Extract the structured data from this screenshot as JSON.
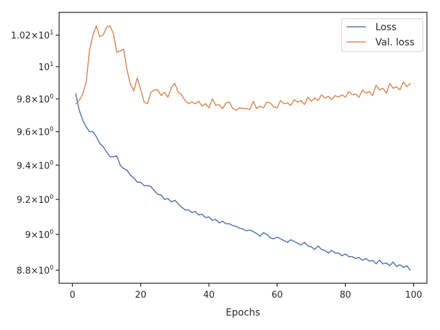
{
  "chart_data": {
    "type": "line",
    "title": "",
    "xlabel": "Epochs",
    "ylabel": "",
    "xlim": [
      -3.9,
      103.9
    ],
    "ylim": [
      8.728,
      10.347
    ],
    "xticks": [
      0,
      20,
      40,
      60,
      80,
      100
    ],
    "xtick_labels": [
      "0",
      "20",
      "40",
      "60",
      "80",
      "100"
    ],
    "yticks": [
      8.8,
      9.0,
      9.2,
      9.4,
      9.6,
      9.8,
      10.0,
      10.2
    ],
    "ytick_labels": [
      {
        "base": "8.8×10",
        "exp": "0"
      },
      {
        "base": "9×10",
        "exp": "0"
      },
      {
        "base": "9.2×10",
        "exp": "0"
      },
      {
        "base": "9.4×10",
        "exp": "0"
      },
      {
        "base": "9.6×10",
        "exp": "0"
      },
      {
        "base": "9.8×10",
        "exp": "0"
      },
      {
        "base": "10",
        "exp": "1"
      },
      {
        "base": "1.02×10",
        "exp": "1"
      }
    ],
    "y_scale": "log",
    "grid": false,
    "legend_position": "top-right",
    "series": [
      {
        "name": "Loss",
        "color": "#4c72b0",
        "x": [
          1,
          2,
          3,
          4,
          5,
          6,
          7,
          8,
          9,
          10,
          11,
          12,
          13,
          14,
          15,
          16,
          17,
          18,
          19,
          20,
          21,
          22,
          23,
          24,
          25,
          26,
          27,
          28,
          29,
          30,
          31,
          32,
          33,
          34,
          35,
          36,
          37,
          38,
          39,
          40,
          41,
          42,
          43,
          44,
          45,
          46,
          47,
          48,
          49,
          50,
          51,
          52,
          53,
          54,
          55,
          56,
          57,
          58,
          59,
          60,
          61,
          62,
          63,
          64,
          65,
          66,
          67,
          68,
          69,
          70,
          71,
          72,
          73,
          74,
          75,
          76,
          77,
          78,
          79,
          80,
          81,
          82,
          83,
          84,
          85,
          86,
          87,
          88,
          89,
          90,
          91,
          92,
          93,
          94,
          95,
          96,
          97,
          98,
          99
        ],
        "values": [
          9.83,
          9.73,
          9.67,
          9.63,
          9.6,
          9.6,
          9.57,
          9.53,
          9.51,
          9.48,
          9.45,
          9.45,
          9.455,
          9.4,
          9.38,
          9.37,
          9.34,
          9.325,
          9.3,
          9.3,
          9.28,
          9.28,
          9.275,
          9.25,
          9.23,
          9.225,
          9.2,
          9.205,
          9.185,
          9.195,
          9.175,
          9.155,
          9.14,
          9.14,
          9.125,
          9.13,
          9.11,
          9.115,
          9.095,
          9.1,
          9.08,
          9.085,
          9.065,
          9.075,
          9.06,
          9.06,
          9.05,
          9.045,
          9.035,
          9.03,
          9.02,
          9.025,
          9.015,
          9.005,
          8.99,
          9.01,
          9.0,
          8.98,
          8.975,
          8.985,
          8.975,
          8.965,
          8.955,
          8.97,
          8.96,
          8.95,
          8.94,
          8.955,
          8.935,
          8.93,
          8.915,
          8.935,
          8.915,
          8.91,
          8.895,
          8.91,
          8.895,
          8.895,
          8.88,
          8.89,
          8.875,
          8.875,
          8.865,
          8.87,
          8.855,
          8.865,
          8.85,
          8.855,
          8.835,
          8.855,
          8.835,
          8.84,
          8.825,
          8.845,
          8.82,
          8.83,
          8.815,
          8.825,
          8.8
        ]
      },
      {
        "name": "Val. loss",
        "color": "#dd8452",
        "x": [
          1,
          2,
          3,
          4,
          5,
          6,
          7,
          8,
          9,
          10,
          11,
          12,
          13,
          14,
          15,
          16,
          17,
          18,
          19,
          20,
          21,
          22,
          23,
          24,
          25,
          26,
          27,
          28,
          29,
          30,
          31,
          32,
          33,
          34,
          35,
          36,
          37,
          38,
          39,
          40,
          41,
          42,
          43,
          44,
          45,
          46,
          47,
          48,
          49,
          50,
          51,
          52,
          53,
          54,
          55,
          56,
          57,
          58,
          59,
          60,
          61,
          62,
          63,
          64,
          65,
          66,
          67,
          68,
          69,
          70,
          71,
          72,
          73,
          74,
          75,
          76,
          77,
          78,
          79,
          80,
          81,
          82,
          83,
          84,
          85,
          86,
          87,
          88,
          89,
          90,
          91,
          92,
          93,
          94,
          95,
          96,
          97,
          98,
          99
        ],
        "values": [
          9.77,
          9.79,
          9.83,
          9.9,
          10.1,
          10.2,
          10.26,
          10.19,
          10.2,
          10.25,
          10.26,
          10.21,
          10.09,
          10.1,
          10.11,
          9.98,
          9.89,
          9.85,
          9.93,
          9.86,
          9.78,
          9.77,
          9.84,
          9.855,
          9.855,
          9.82,
          9.84,
          9.81,
          9.87,
          9.895,
          9.84,
          9.825,
          9.79,
          9.77,
          9.78,
          9.77,
          9.785,
          9.755,
          9.77,
          9.745,
          9.8,
          9.76,
          9.765,
          9.74,
          9.775,
          9.78,
          9.74,
          9.73,
          9.745,
          9.74,
          9.74,
          9.735,
          9.785,
          9.74,
          9.755,
          9.745,
          9.78,
          9.775,
          9.75,
          9.745,
          9.79,
          9.77,
          9.775,
          9.76,
          9.795,
          9.78,
          9.79,
          9.765,
          9.81,
          9.785,
          9.805,
          9.79,
          9.825,
          9.805,
          9.815,
          9.795,
          9.82,
          9.81,
          9.825,
          9.81,
          9.845,
          9.825,
          9.83,
          9.81,
          9.855,
          9.835,
          9.845,
          9.82,
          9.885,
          9.855,
          9.865,
          9.835,
          9.895,
          9.865,
          9.875,
          9.855,
          9.905,
          9.875,
          9.895
        ]
      }
    ]
  }
}
